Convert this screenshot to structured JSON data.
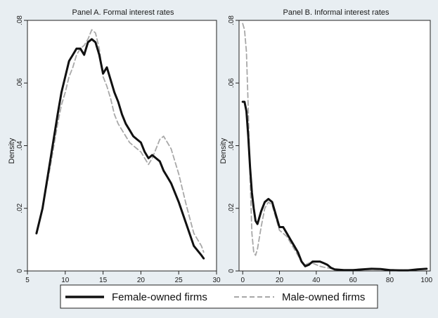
{
  "legend": {
    "female_label": "Female-owned firms",
    "male_label": "Male-owned firms",
    "placement": "bottom"
  },
  "styles": {
    "background": "#e8eef2",
    "plot_background": "#ffffff",
    "female_color": "#111111",
    "male_color": "#a8a8a8"
  },
  "chart_data": [
    {
      "type": "line",
      "title": "Panel A. Formal interest rates",
      "xlabel": "",
      "ylabel": "Density",
      "xlim": [
        5,
        30
      ],
      "ylim": [
        0,
        0.08
      ],
      "xticks": [
        5,
        10,
        15,
        20,
        25,
        30
      ],
      "xtick_labels": [
        "5",
        "10",
        "15",
        "20",
        "25",
        "30"
      ],
      "yticks": [
        0,
        0.02,
        0.04,
        0.06,
        0.08
      ],
      "ytick_labels": [
        "0",
        ".02",
        ".04",
        ".06",
        ".08"
      ],
      "grid": false,
      "series": [
        {
          "name": "Female-owned firms",
          "x": [
            6.2,
            7,
            8,
            9,
            9.5,
            10,
            10.5,
            11,
            11.5,
            12,
            12.5,
            13,
            13.5,
            14,
            14.5,
            15,
            15.5,
            16,
            16.5,
            17,
            17.5,
            18,
            18.5,
            19,
            19.5,
            20,
            20.5,
            21,
            21.5,
            22,
            22.5,
            23,
            23.5,
            24,
            25,
            26,
            27,
            28,
            28.3
          ],
          "y": [
            0.012,
            0.02,
            0.035,
            0.05,
            0.057,
            0.062,
            0.067,
            0.069,
            0.071,
            0.071,
            0.069,
            0.073,
            0.074,
            0.073,
            0.069,
            0.063,
            0.065,
            0.061,
            0.057,
            0.054,
            0.05,
            0.047,
            0.045,
            0.043,
            0.042,
            0.041,
            0.038,
            0.036,
            0.037,
            0.036,
            0.035,
            0.032,
            0.03,
            0.028,
            0.022,
            0.015,
            0.008,
            0.005,
            0.004
          ]
        },
        {
          "name": "Male-owned firms",
          "x": [
            6.2,
            7,
            8,
            9,
            9.5,
            10,
            10.5,
            11,
            11.5,
            12,
            12.5,
            13,
            13.5,
            14,
            14.5,
            15,
            15.5,
            16,
            16.5,
            17,
            17.5,
            18,
            18.5,
            19,
            19.5,
            20,
            20.5,
            21,
            21.5,
            22,
            22.5,
            23,
            23.5,
            24,
            25,
            26,
            27,
            28,
            28.3
          ],
          "y": [
            0.012,
            0.02,
            0.033,
            0.047,
            0.053,
            0.057,
            0.062,
            0.065,
            0.069,
            0.071,
            0.072,
            0.074,
            0.077,
            0.076,
            0.071,
            0.062,
            0.059,
            0.055,
            0.05,
            0.047,
            0.045,
            0.043,
            0.041,
            0.04,
            0.039,
            0.038,
            0.036,
            0.034,
            0.036,
            0.039,
            0.042,
            0.043,
            0.041,
            0.039,
            0.031,
            0.021,
            0.012,
            0.008,
            0.006
          ]
        }
      ]
    },
    {
      "type": "line",
      "title": "Panel B. Informal interest rates",
      "xlabel": "",
      "ylabel": "Density",
      "xlim": [
        -2,
        102
      ],
      "ylim": [
        0,
        0.08
      ],
      "xticks": [
        0,
        20,
        40,
        60,
        80,
        100
      ],
      "xtick_labels": [
        "0",
        "20",
        "40",
        "60",
        "80",
        "100"
      ],
      "yticks": [
        0,
        0.02,
        0.04,
        0.06,
        0.08
      ],
      "ytick_labels": [
        "0",
        ".02",
        ".04",
        ".06",
        ".08"
      ],
      "grid": false,
      "series": [
        {
          "name": "Female-owned firms",
          "x": [
            0,
            1,
            2,
            3,
            4,
            5,
            6,
            7,
            8,
            10,
            12,
            14,
            16,
            18,
            20,
            22,
            24,
            26,
            28,
            30,
            32,
            34,
            36,
            38,
            40,
            42,
            44,
            46,
            48,
            50,
            55,
            60,
            65,
            70,
            75,
            80,
            85,
            90,
            95,
            100
          ],
          "y": [
            0.054,
            0.054,
            0.051,
            0.043,
            0.033,
            0.025,
            0.02,
            0.016,
            0.015,
            0.019,
            0.022,
            0.023,
            0.022,
            0.018,
            0.014,
            0.014,
            0.012,
            0.01,
            0.008,
            0.006,
            0.003,
            0.0015,
            0.002,
            0.003,
            0.003,
            0.003,
            0.0025,
            0.002,
            0.001,
            0.0005,
            0.0003,
            0.0003,
            0.0005,
            0.0007,
            0.0006,
            0.0003,
            0.0002,
            0.0002,
            0.0005,
            0.0007
          ]
        },
        {
          "name": "Male-owned firms",
          "x": [
            0,
            1,
            2,
            3,
            4,
            5,
            6,
            7,
            8,
            10,
            12,
            14,
            16,
            18,
            20,
            22,
            24,
            26,
            28,
            30,
            32,
            34,
            36,
            38,
            40,
            42,
            44,
            46,
            48,
            50,
            55,
            60,
            65,
            70,
            75,
            80,
            85,
            90,
            95,
            100
          ],
          "y": [
            0.079,
            0.077,
            0.07,
            0.052,
            0.03,
            0.012,
            0.006,
            0.005,
            0.007,
            0.014,
            0.02,
            0.022,
            0.021,
            0.017,
            0.013,
            0.012,
            0.011,
            0.009,
            0.007,
            0.005,
            0.003,
            0.002,
            0.0025,
            0.0025,
            0.002,
            0.0015,
            0.0012,
            0.001,
            0.0008,
            0.0005,
            0.0003,
            0.0003,
            0.0004,
            0.0005,
            0.0005,
            0.0004,
            0.0003,
            0.0003,
            0.0004,
            0.0006
          ]
        }
      ]
    }
  ]
}
